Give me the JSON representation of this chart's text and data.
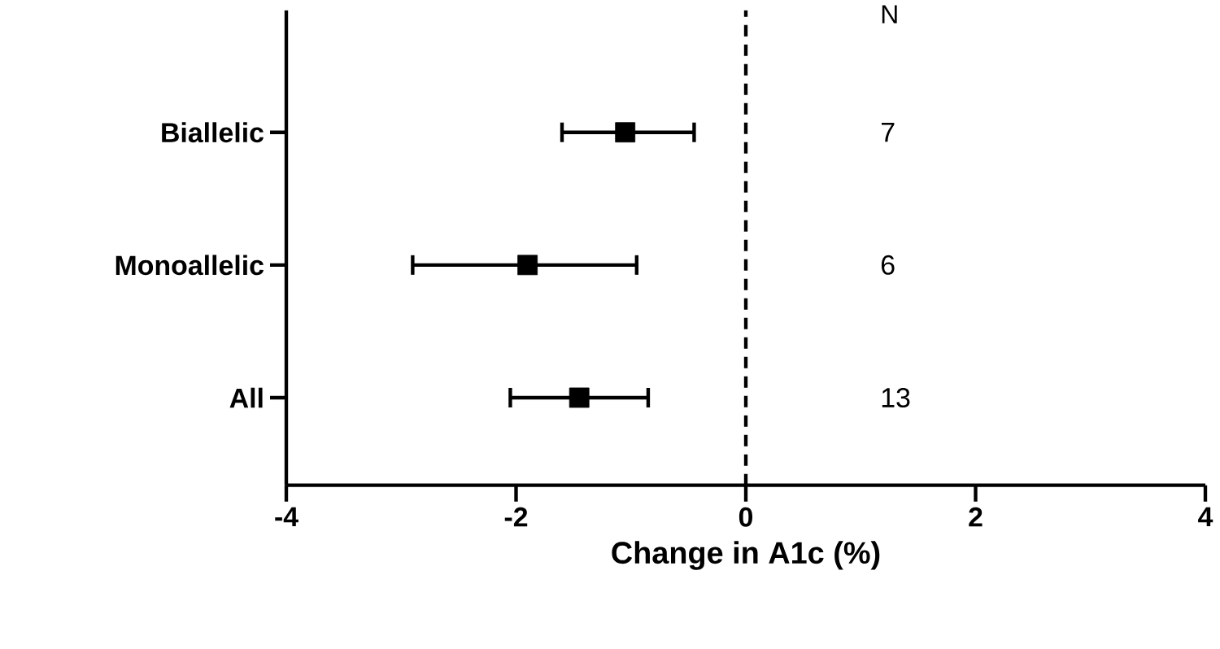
{
  "chart_data": {
    "type": "scatter",
    "orientation": "horizontal",
    "categories": [
      "Biallelic",
      "Monoallelic",
      "All"
    ],
    "values": [
      -1.05,
      -1.9,
      -1.45
    ],
    "errors": [
      [
        -1.6,
        -0.45
      ],
      [
        -2.9,
        -0.95
      ],
      [
        -2.05,
        -0.85
      ]
    ],
    "color": "#000000",
    "marker": "square",
    "xlim": [
      -4,
      4
    ],
    "xticks": [
      -4,
      -2,
      0,
      2,
      4
    ],
    "xlabel": "Change in A1c (%)",
    "ref_lines": [
      {
        "axis": "x",
        "value": 0,
        "line_style": "dashed",
        "color": "#000000"
      }
    ],
    "annotations": [
      "N",
      "7",
      "6",
      "13"
    ],
    "grid": false
  }
}
